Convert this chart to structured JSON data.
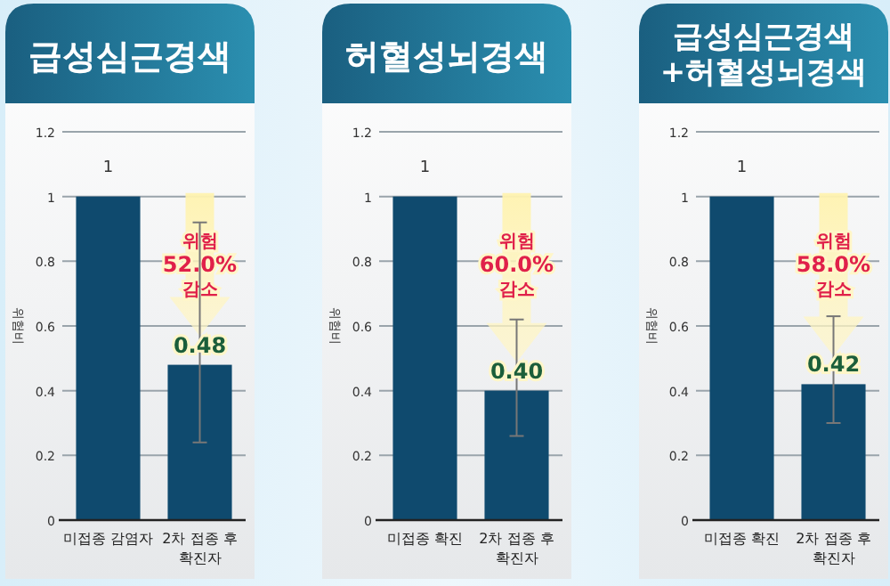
{
  "chart_data": [
    {
      "type": "bar",
      "title": "급성심근경색",
      "ylabel": "위험비",
      "categories": [
        "미접종 감염자",
        "2차 접종 후 확진자"
      ],
      "values": [
        1,
        0.48
      ],
      "value_labels": [
        "1",
        "0.48"
      ],
      "errors": [
        null,
        [
          0.24,
          0.92
        ]
      ],
      "color": "#0f4a6e",
      "ylim": [
        0,
        1.2
      ],
      "yticks": [
        0,
        0.2,
        0.4,
        0.6,
        0.8,
        1,
        1.2
      ],
      "grid": "y",
      "annotations": [
        "위험\n52.0%\n감소"
      ]
    },
    {
      "type": "bar",
      "title": "허혈성뇌경색",
      "ylabel": "위험비",
      "categories": [
        "미접종 확진",
        "2차 접종 후 확진자"
      ],
      "values": [
        1,
        0.4
      ],
      "value_labels": [
        "1",
        "0.40"
      ],
      "errors": [
        null,
        [
          0.26,
          0.62
        ]
      ],
      "color": "#0f4a6e",
      "ylim": [
        0,
        1.2
      ],
      "yticks": [
        0,
        0.2,
        0.4,
        0.6,
        0.8,
        1,
        1.2
      ],
      "grid": "y",
      "annotations": [
        "위험\n60.0%\n감소"
      ]
    },
    {
      "type": "bar",
      "title": "급성심근경색+허혈성뇌경색",
      "ylabel": "위험비",
      "categories": [
        "미접종 확진",
        "2차 접종 후 확진자"
      ],
      "values": [
        1,
        0.42
      ],
      "value_labels": [
        "1",
        "0.42"
      ],
      "errors": [
        null,
        [
          0.3,
          0.63
        ]
      ],
      "color": "#0f4a6e",
      "ylim": [
        0,
        1.2
      ],
      "yticks": [
        0,
        0.2,
        0.4,
        0.6,
        0.8,
        1,
        1.2
      ],
      "grid": "y",
      "annotations": [
        "위험\n58.0%\n감소"
      ]
    }
  ]
}
